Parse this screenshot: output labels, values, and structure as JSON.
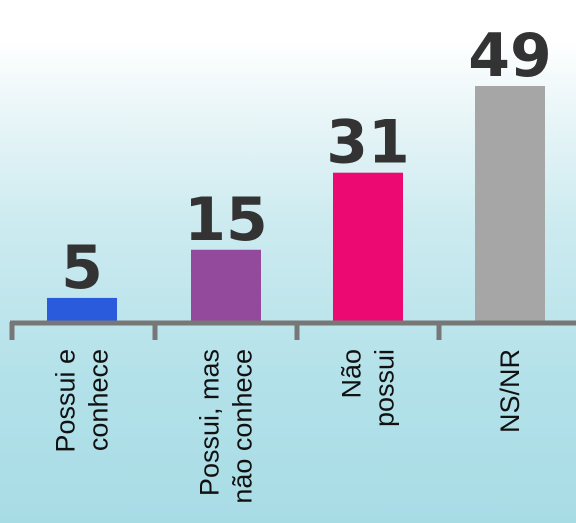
{
  "chart_data": {
    "type": "bar",
    "categories": [
      [
        "Possui e",
        "conhece"
      ],
      [
        "Possui, mas",
        "não conhece"
      ],
      [
        "Não",
        "possui"
      ],
      [
        "NS/NR"
      ]
    ],
    "values": [
      5,
      15,
      31,
      49
    ],
    "data_labels": [
      "5",
      "15",
      "31",
      "49"
    ],
    "colors": [
      "#2a5bdc",
      "#944a9c",
      "#ec0a72",
      "#a6a6a6"
    ],
    "axis_color": "#777777",
    "title": "",
    "xlabel": "",
    "ylabel": "",
    "ylim": [
      0,
      49
    ],
    "grid": false,
    "legend": "none"
  }
}
